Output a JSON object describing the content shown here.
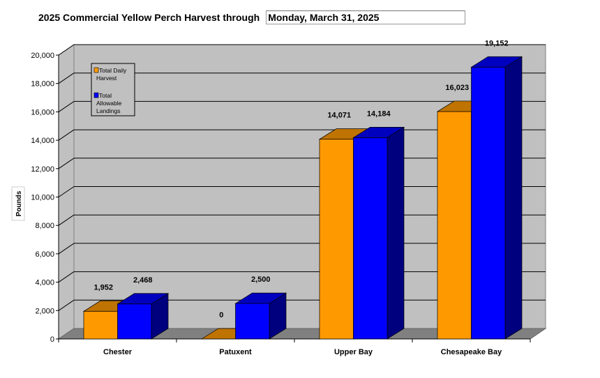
{
  "header": {
    "title": "2025 Commercial Yellow Perch Harvest through",
    "date": "Monday, March 31, 2025"
  },
  "chart_data": {
    "type": "bar",
    "style": "3d-clustered",
    "categories": [
      "Chester",
      "Patuxent",
      "Upper Bay",
      "Chesapeake Bay"
    ],
    "series": [
      {
        "name": "Total Daily Harvest",
        "color": "#FF9900",
        "values": [
          1952,
          0,
          14071,
          16023
        ],
        "labels": [
          "1,952",
          "0",
          "14,071",
          "16,023"
        ]
      },
      {
        "name": "Total Allowable Landings",
        "color": "#0000FF",
        "values": [
          2468,
          2500,
          14184,
          19152
        ],
        "labels": [
          "2,468",
          "2,500",
          "14,184",
          "19,152"
        ]
      }
    ],
    "ylabel": "Pounds",
    "ylim": [
      0,
      20000
    ],
    "yticks": [
      "0",
      "2,000",
      "4,000",
      "6,000",
      "8,000",
      "10,000",
      "12,000",
      "14,000",
      "16,000",
      "18,000",
      "20,000"
    ],
    "grid": true,
    "legend": "top-left",
    "legend_labels": [
      [
        "Total Daily",
        "Harvest"
      ],
      [
        "Total",
        "Allowable",
        "Landings"
      ]
    ]
  }
}
